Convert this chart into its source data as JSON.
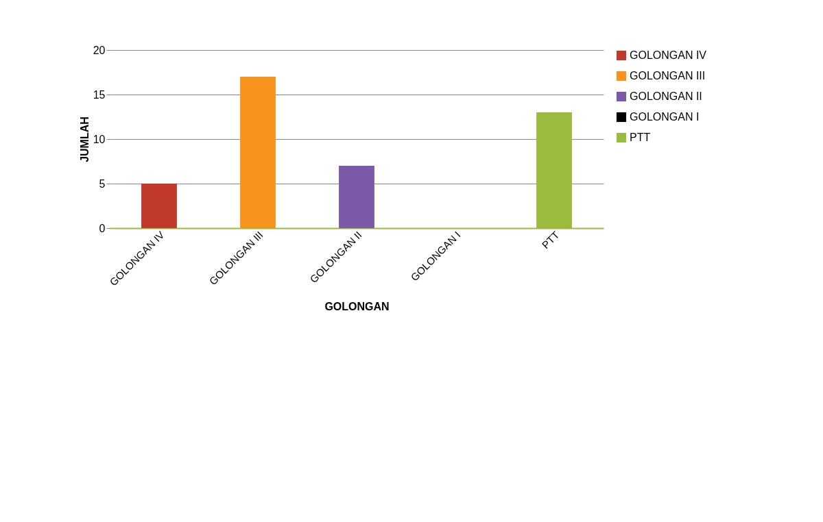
{
  "chart_data": {
    "type": "bar",
    "xlabel": "GOLONGAN",
    "ylabel": "JUMLAH",
    "categories": [
      "GOLONGAN IV",
      "GOLONGAN III",
      "GOLONGAN II",
      "GOLONGAN I",
      "PTT"
    ],
    "series": [
      {
        "name": "GOLONGAN IV",
        "color": "#c0392b",
        "values": [
          5,
          null,
          null,
          null,
          null
        ]
      },
      {
        "name": "GOLONGAN III",
        "color": "#f7941d",
        "values": [
          null,
          17,
          null,
          null,
          null
        ]
      },
      {
        "name": "GOLONGAN II",
        "color": "#7a5aa6",
        "values": [
          null,
          null,
          7,
          null,
          null
        ]
      },
      {
        "name": "GOLONGAN I",
        "color": "#000000",
        "values": [
          null,
          null,
          null,
          0,
          null
        ]
      },
      {
        "name": "PTT",
        "color": "#9bbb3f",
        "values": [
          null,
          null,
          null,
          null,
          13
        ]
      }
    ],
    "ylim": [
      0,
      20
    ],
    "yticks": [
      0,
      5,
      10,
      15,
      20
    ],
    "grid": "y",
    "legend": "right"
  }
}
